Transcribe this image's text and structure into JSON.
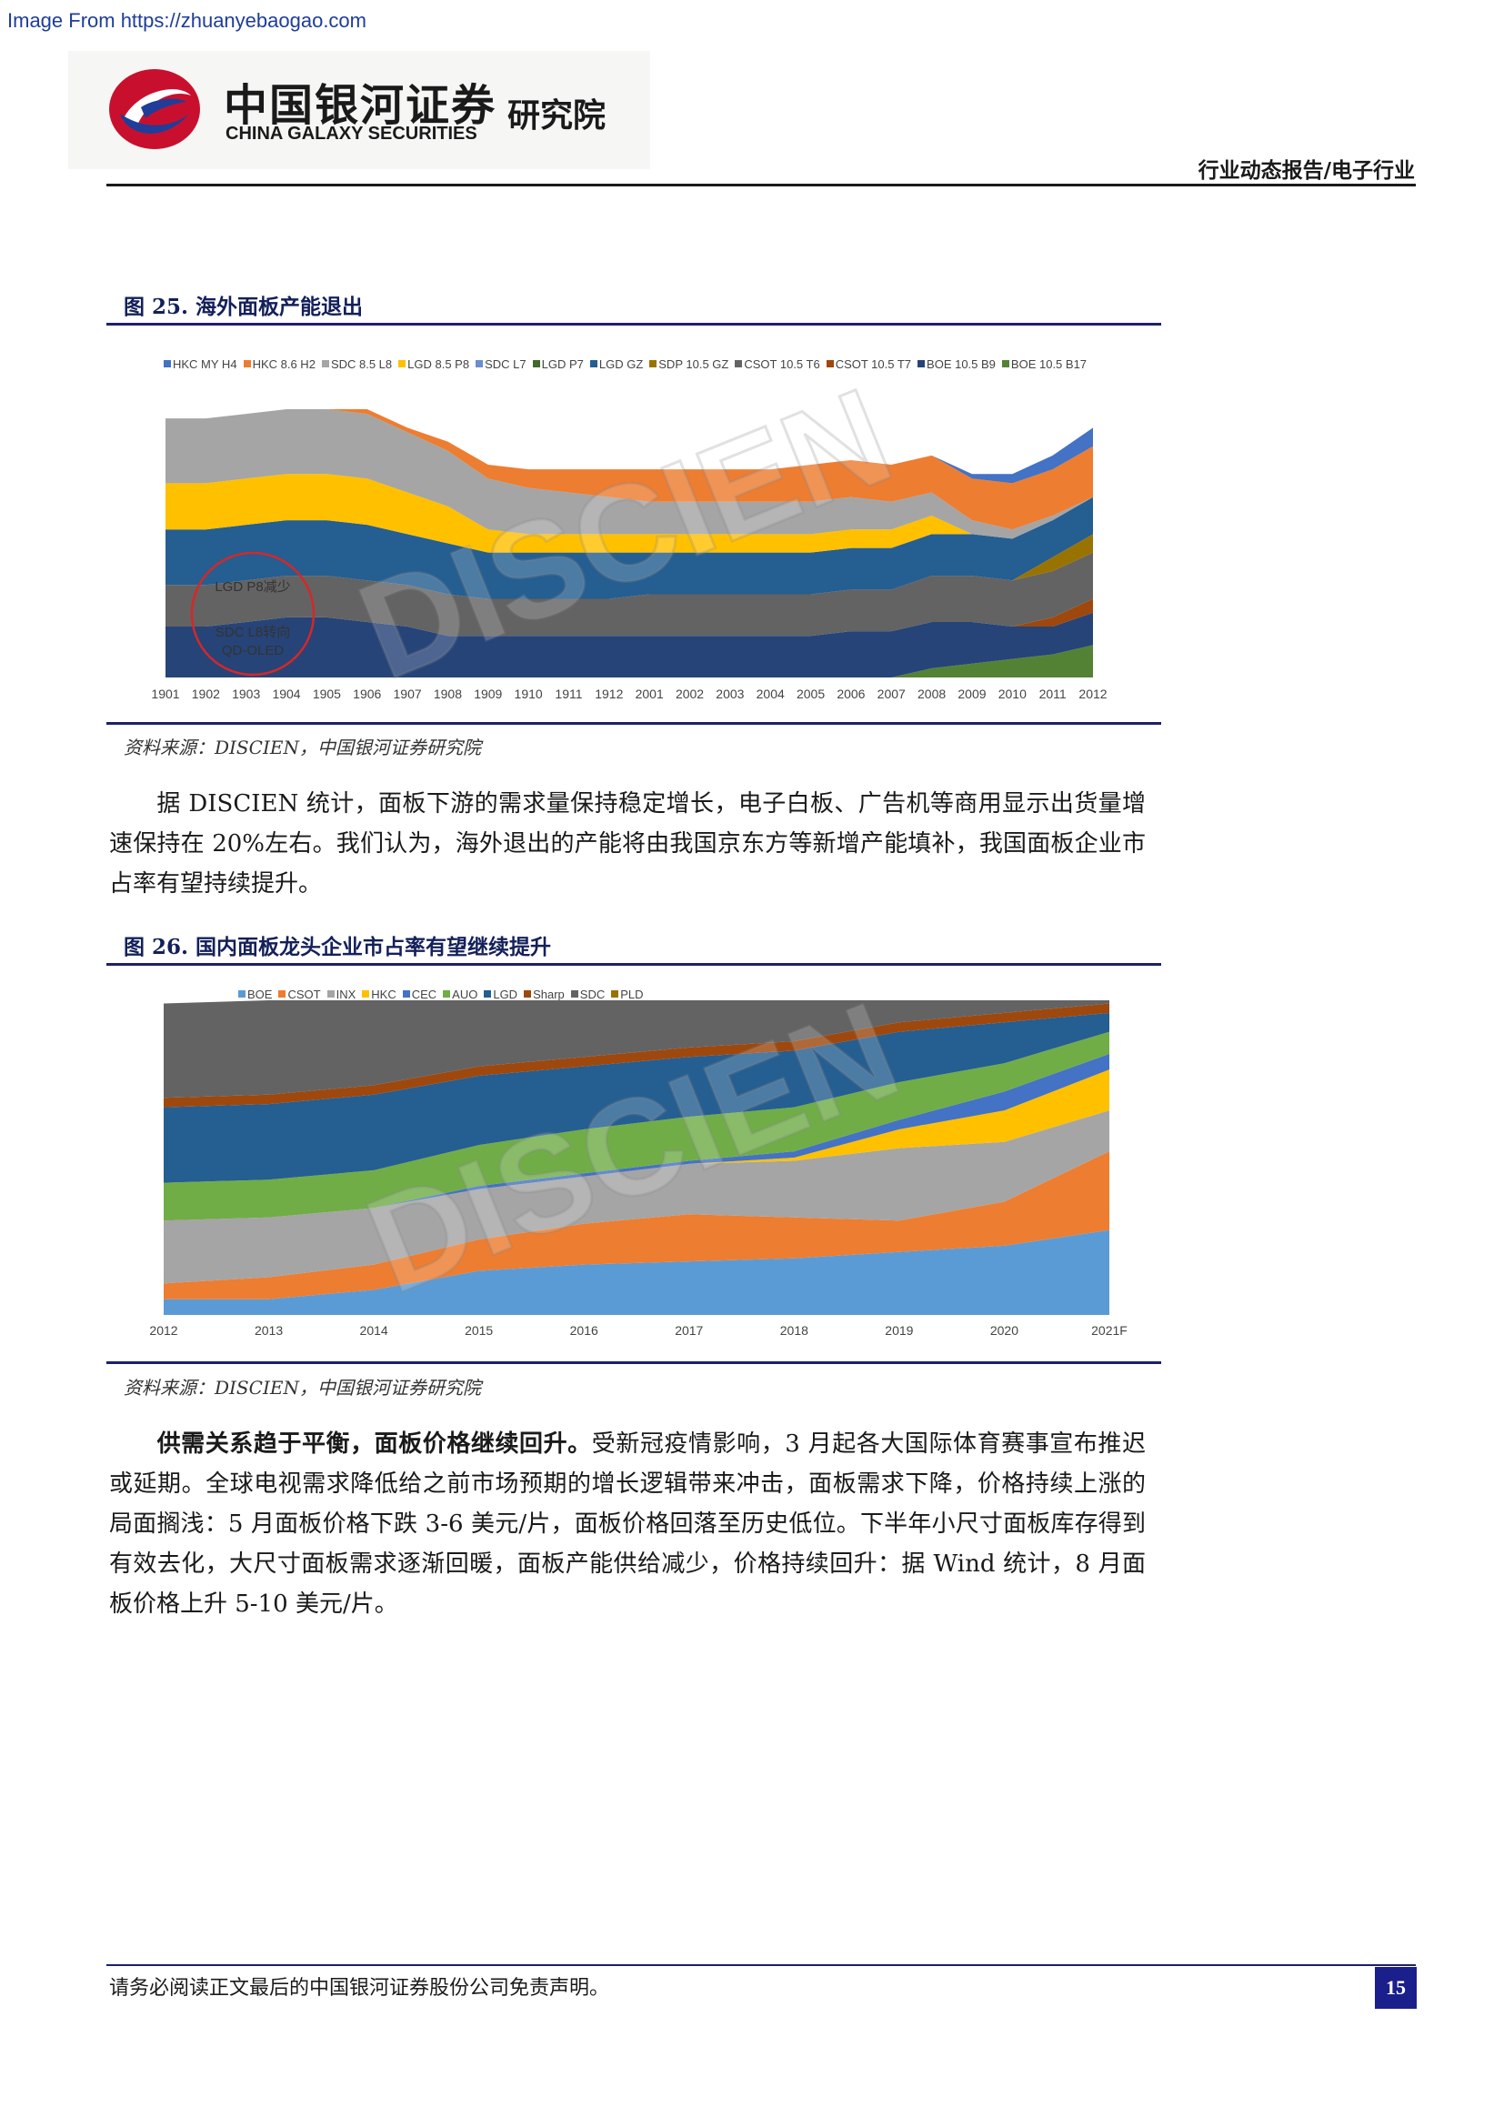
{
  "watermark": "Image From https://zhuanyebaogao.com",
  "header": {
    "logo_cn": "中国银河证券",
    "logo_en": "CHINA GALAXY SECURITIES",
    "logo_institute": "研究院",
    "tag": "行业动态报告/电子行业"
  },
  "figure25": {
    "title": "图 25. 海外面板产能退出",
    "source": "资料来源：DISCIEN，中国银河证券研究院",
    "annotation1": "LGD P8减少",
    "annotation2_line1": "SDC L8转向",
    "annotation2_line2": "QD-OLED",
    "chart_watermark": "DISCIEN"
  },
  "paragraph1": "据 DISCIEN 统计，面板下游的需求量保持稳定增长，电子白板、广告机等商用显示出货量增速保持在 20%左右。我们认为，海外退出的产能将由我国京东方等新增产能填补，我国面板企业市占率有望持续提升。",
  "figure26": {
    "title": "图 26. 国内面板龙头企业市占率有望继续提升",
    "source": "资料来源：DISCIEN，中国银河证券研究院",
    "chart_watermark": "DISCIEN"
  },
  "paragraph2": {
    "bold_lead": "供需关系趋于平衡，面板价格继续回升。",
    "text": "受新冠疫情影响，3 月起各大国际体育赛事宣布推迟或延期。全球电视需求降低给之前市场预期的增长逻辑带来冲击，面板需求下降，价格持续上涨的局面搁浅：5 月面板价格下跌 3-6 美元/片，面板价格回落至历史低位。下半年小尺寸面板库存得到有效去化，大尺寸面板需求逐渐回暖，面板产能供给减少，价格持续回升：据 Wind 统计，8 月面板价格上升 5-10 美元/片。"
  },
  "footer": {
    "disclaimer": "请务必阅读正文最后的中国银河证券股份公司免责声明。",
    "page_number": "15"
  },
  "chart_data": [
    {
      "type": "area",
      "stacked": true,
      "title": "",
      "categories": [
        "1901",
        "1902",
        "1903",
        "1904",
        "1905",
        "1906",
        "1907",
        "1908",
        "1909",
        "1910",
        "1911",
        "1912",
        "2001",
        "2002",
        "2003",
        "2004",
        "2005",
        "2006",
        "2007",
        "2008",
        "2009",
        "2010",
        "2011",
        "2012"
      ],
      "series": [
        {
          "name": "BOE 10.5 B17",
          "color": "#548235",
          "values": [
            0,
            0,
            0,
            0,
            0,
            0,
            0,
            0,
            0,
            0,
            0,
            0,
            0,
            0,
            0,
            0,
            0,
            0,
            0,
            2,
            3,
            4,
            5,
            7
          ]
        },
        {
          "name": "BOE 10.5 B9",
          "color": "#264478",
          "values": [
            11,
            11,
            12,
            13,
            13,
            12,
            11,
            9,
            9,
            9,
            9,
            9,
            9,
            9,
            9,
            9,
            9,
            10,
            10,
            10,
            9,
            7,
            6,
            7
          ]
        },
        {
          "name": "CSOT 10.5 T7",
          "color": "#9e480e",
          "values": [
            0,
            0,
            0,
            0,
            0,
            0,
            0,
            0,
            0,
            0,
            0,
            0,
            0,
            0,
            0,
            0,
            0,
            0,
            0,
            0,
            0,
            0,
            2,
            3
          ]
        },
        {
          "name": "CSOT 10.5 T6",
          "color": "#636363",
          "values": [
            9,
            9,
            9,
            9,
            9,
            9,
            9,
            9,
            8,
            8,
            8,
            8,
            9,
            9,
            9,
            9,
            9,
            9,
            9,
            10,
            10,
            10,
            10,
            10
          ]
        },
        {
          "name": "SDP 10.5 GZ",
          "color": "#997300",
          "values": [
            0,
            0,
            0,
            0,
            0,
            0,
            0,
            0,
            0,
            0,
            0,
            0,
            0,
            0,
            0,
            0,
            0,
            0,
            0,
            0,
            0,
            0,
            3,
            4
          ]
        },
        {
          "name": "LGD GZ",
          "color": "#255e91",
          "values": [
            12,
            12,
            12,
            12,
            12,
            12,
            11,
            11,
            10,
            10,
            10,
            10,
            9,
            9,
            9,
            9,
            9,
            9,
            9,
            9,
            9,
            9,
            8,
            8
          ]
        },
        {
          "name": "LGD P7",
          "color": "#43682b",
          "values": [
            0,
            0,
            0,
            0,
            0,
            0,
            0,
            0,
            0,
            0,
            0,
            0,
            0,
            0,
            0,
            0,
            0,
            0,
            0,
            0,
            0,
            0,
            0,
            0
          ]
        },
        {
          "name": "SDC L7",
          "color": "#698ed0",
          "values": [
            0,
            0,
            0,
            0,
            0,
            0,
            0,
            0,
            0,
            0,
            0,
            0,
            0,
            0,
            0,
            0,
            0,
            0,
            0,
            0,
            0,
            0,
            0,
            0
          ]
        },
        {
          "name": "LGD 8.5 P8",
          "color": "#ffc000",
          "values": [
            10,
            10,
            10,
            10,
            10,
            10,
            9,
            8,
            5,
            4,
            4,
            4,
            4,
            4,
            4,
            4,
            4,
            4,
            4,
            4,
            0,
            0,
            0,
            0
          ]
        },
        {
          "name": "SDC 8.5 L8",
          "color": "#a5a5a5",
          "values": [
            14,
            14,
            14,
            14,
            14,
            14,
            13,
            12,
            11,
            10,
            9,
            8,
            7,
            7,
            7,
            7,
            7,
            7,
            6,
            5,
            3,
            2,
            1,
            0
          ]
        },
        {
          "name": "HKC 8.6 H2",
          "color": "#ed7d31",
          "values": [
            0,
            0,
            0,
            0,
            0,
            1,
            1,
            2,
            3,
            4,
            5,
            6,
            7,
            7,
            7,
            7,
            8,
            8,
            8,
            8,
            9,
            10,
            10,
            11
          ]
        },
        {
          "name": "HKC MY H4",
          "color": "#4472c4",
          "values": [
            0,
            0,
            0,
            0,
            0,
            0,
            0,
            0,
            0,
            0,
            0,
            0,
            0,
            0,
            0,
            0,
            0,
            0,
            0,
            0,
            1,
            2,
            3,
            4
          ]
        }
      ]
    },
    {
      "type": "area",
      "stacked": true,
      "title": "",
      "categories": [
        "2012",
        "2013",
        "2014",
        "2015",
        "2016",
        "2017",
        "2018",
        "2019",
        "2020",
        "2021F"
      ],
      "series": [
        {
          "name": "BOE",
          "color": "#5b9bd5",
          "values": [
            5,
            5,
            8,
            14,
            16,
            17,
            18,
            20,
            22,
            27
          ]
        },
        {
          "name": "CSOT",
          "color": "#ed7d31",
          "values": [
            5,
            7,
            8,
            10,
            13,
            15,
            13,
            10,
            14,
            25
          ]
        },
        {
          "name": "INX",
          "color": "#a5a5a5",
          "values": [
            20,
            19,
            18,
            16,
            15,
            16,
            18,
            23,
            19,
            13
          ]
        },
        {
          "name": "HKC",
          "color": "#ffc000",
          "values": [
            0,
            0,
            0,
            0,
            0,
            0,
            1,
            6,
            10,
            13
          ]
        },
        {
          "name": "CEC",
          "color": "#4472c4",
          "values": [
            0,
            0,
            0,
            1,
            1,
            1,
            2,
            3,
            6,
            5
          ]
        },
        {
          "name": "AUO",
          "color": "#70ad47",
          "values": [
            12,
            12,
            12,
            13,
            14,
            14,
            14,
            12,
            9,
            7
          ]
        },
        {
          "name": "LGD",
          "color": "#255e91",
          "values": [
            24,
            24,
            24,
            22,
            20,
            19,
            18,
            16,
            13,
            6
          ]
        },
        {
          "name": "Sharp",
          "color": "#9e480e",
          "values": [
            3,
            3,
            3,
            3,
            3,
            3,
            3,
            3,
            3,
            3
          ]
        },
        {
          "name": "SDC",
          "color": "#636363",
          "values": [
            30,
            30,
            27,
            21,
            18,
            15,
            13,
            7,
            4,
            1
          ]
        },
        {
          "name": "PLD",
          "color": "#997300",
          "values": [
            0,
            0,
            0,
            0,
            0,
            0,
            0,
            0,
            0,
            0
          ]
        }
      ]
    }
  ]
}
